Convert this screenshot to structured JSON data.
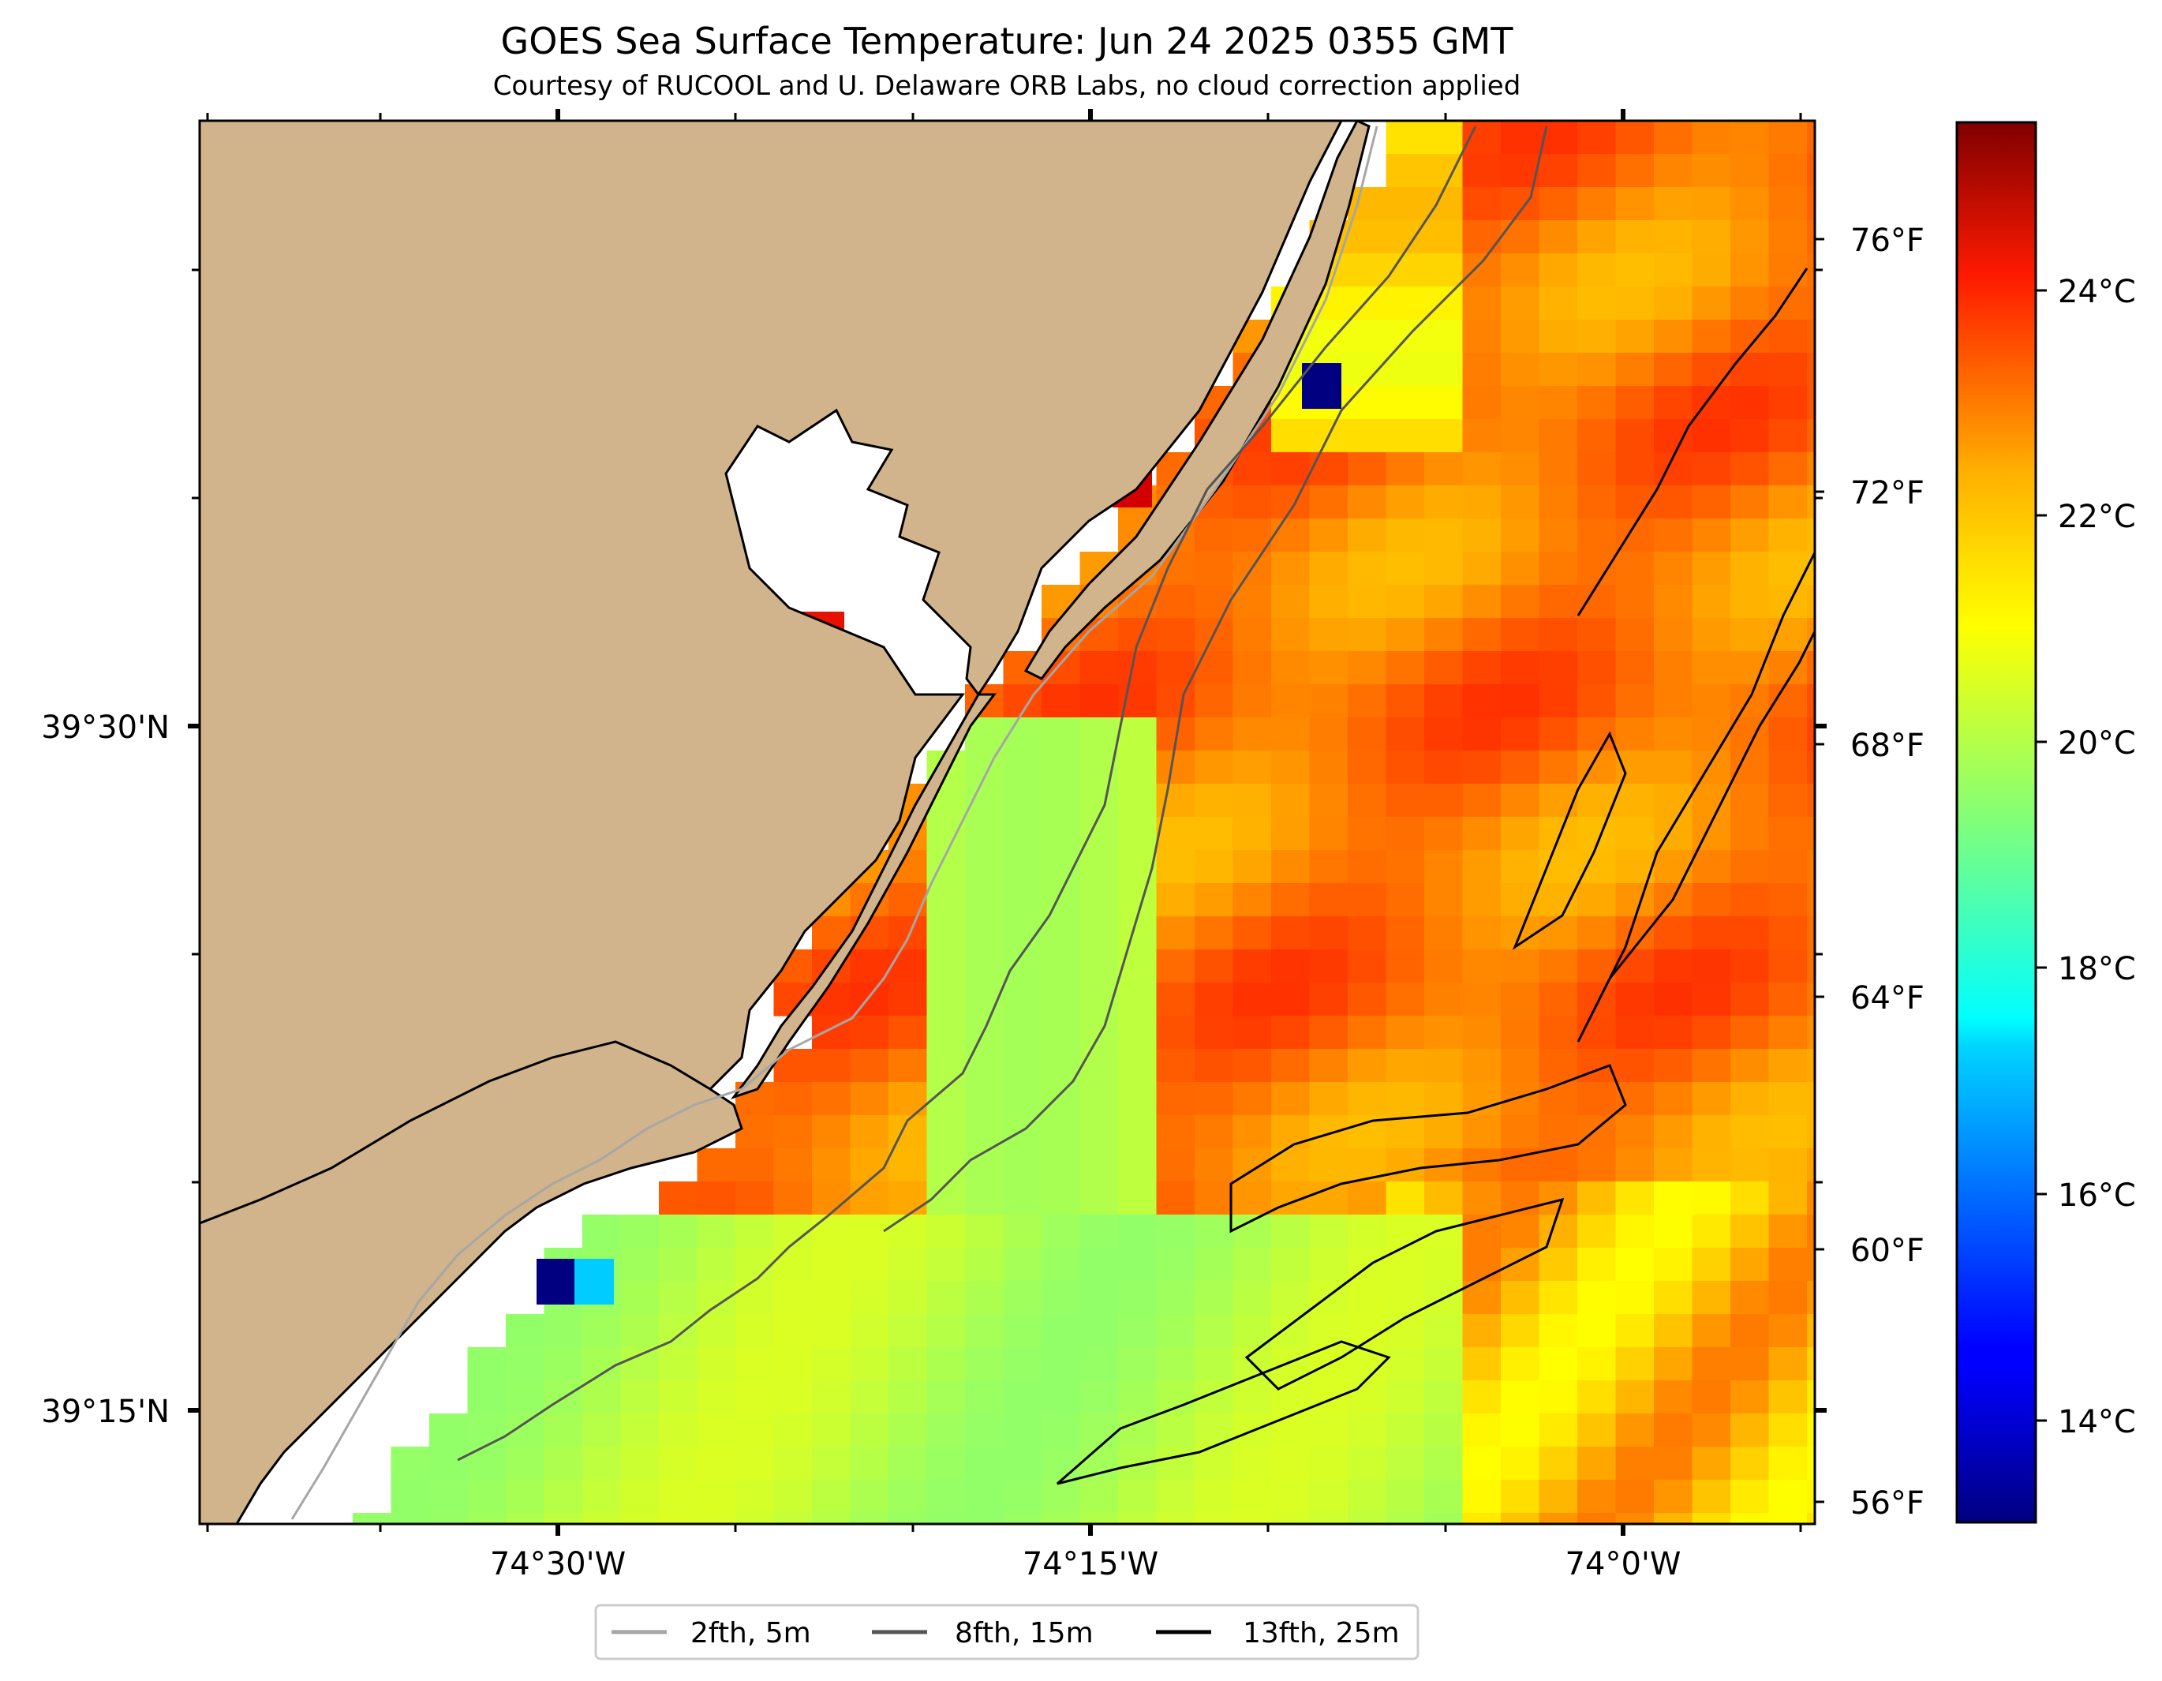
{
  "title": "GOES Sea Surface Temperature: Jun 24 2025 0355 GMT",
  "subtitle": "Courtesy of RUCOOL and U. Delaware ORB Labs, no cloud correction applied",
  "axes": {
    "lat_labels": [
      "39°30'N",
      "39°15'N"
    ],
    "lon_labels": [
      "74°30'W",
      "74°15'W",
      "74°0'W"
    ]
  },
  "colorbar": {
    "fahrenheit_labels": [
      "76°F",
      "72°F",
      "68°F",
      "64°F",
      "60°F",
      "56°F"
    ],
    "celsius_labels": [
      "24°C",
      "22°C",
      "20°C",
      "18°C",
      "16°C",
      "14°C"
    ],
    "range_c": [
      12.8,
      25.2
    ]
  },
  "legend": {
    "items": [
      {
        "label": "2fth, 5m",
        "color": "#a6a6a6"
      },
      {
        "label": "8fth, 15m",
        "color": "#555555"
      },
      {
        "label": "13fth, 25m",
        "color": "#000000"
      }
    ],
    "placement": "bottom-center"
  },
  "colors": {
    "land": "#d2b48c",
    "no_data": "#ffffff"
  }
}
